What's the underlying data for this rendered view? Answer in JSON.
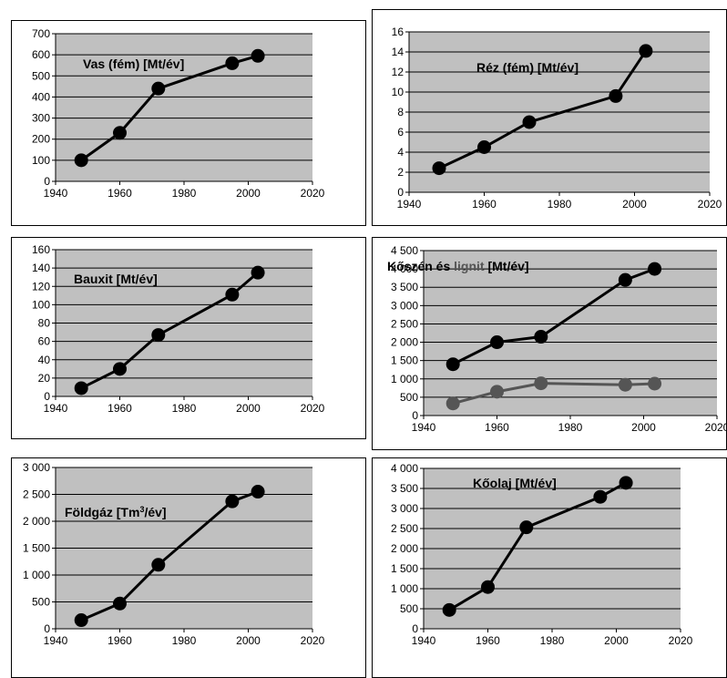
{
  "chart_data": [
    {
      "id": "vas",
      "type": "line",
      "title": "Vas (fém) [Mt/év]",
      "xlim": [
        1940,
        2020
      ],
      "ylim": [
        0,
        700
      ],
      "xticks": [
        1940,
        1960,
        1980,
        2000,
        2020
      ],
      "yticks": [
        0,
        100,
        200,
        300,
        400,
        500,
        600,
        700
      ],
      "ytick_labels": [
        "0",
        "100",
        "200",
        "300",
        "400",
        "500",
        "600",
        "700"
      ],
      "grid": true,
      "series": [
        {
          "color": "#000000",
          "x": [
            1948,
            1960,
            1972,
            1995,
            2003
          ],
          "y": [
            100,
            230,
            440,
            560,
            595
          ]
        }
      ]
    },
    {
      "id": "rez",
      "type": "line",
      "title": "Réz (fém) [Mt/év]",
      "xlim": [
        1940,
        2020
      ],
      "ylim": [
        0,
        16
      ],
      "xticks": [
        1940,
        1960,
        1980,
        2000,
        2020
      ],
      "yticks": [
        0,
        2,
        4,
        6,
        8,
        10,
        12,
        14,
        16
      ],
      "ytick_labels": [
        "0",
        "2",
        "4",
        "6",
        "8",
        "10",
        "12",
        "14",
        "16"
      ],
      "grid": true,
      "series": [
        {
          "color": "#000000",
          "x": [
            1948,
            1960,
            1972,
            1995,
            2003
          ],
          "y": [
            2.4,
            4.5,
            7.0,
            9.6,
            14.1
          ]
        }
      ]
    },
    {
      "id": "bauxit",
      "type": "line",
      "title": "Bauxit [Mt/év]",
      "xlim": [
        1940,
        2020
      ],
      "ylim": [
        0,
        160
      ],
      "xticks": [
        1940,
        1960,
        1980,
        2000,
        2020
      ],
      "yticks": [
        0,
        20,
        40,
        60,
        80,
        100,
        120,
        140,
        160
      ],
      "ytick_labels": [
        "0",
        "20",
        "40",
        "60",
        "80",
        "100",
        "120",
        "140",
        "160"
      ],
      "grid": true,
      "series": [
        {
          "color": "#000000",
          "x": [
            1948,
            1960,
            1972,
            1995,
            2003
          ],
          "y": [
            9,
            30,
            67,
            111,
            135
          ]
        }
      ]
    },
    {
      "id": "koszen",
      "type": "line",
      "title_parts": [
        {
          "text": "Kőszén és ",
          "color": "#000000"
        },
        {
          "text": "lignit",
          "color": "#555555"
        },
        {
          "text": " [Mt/év]",
          "color": "#000000"
        }
      ],
      "xlim": [
        1940,
        2020
      ],
      "ylim": [
        0,
        4500
      ],
      "xticks": [
        1940,
        1960,
        1980,
        2000,
        2020
      ],
      "yticks": [
        0,
        500,
        1000,
        1500,
        2000,
        2500,
        3000,
        3500,
        4000,
        4500
      ],
      "ytick_labels": [
        "0",
        "500",
        "1 000",
        "1 500",
        "2 000",
        "2 500",
        "3 000",
        "3 500",
        "4 000",
        "4 500"
      ],
      "grid": true,
      "series": [
        {
          "color": "#000000",
          "x": [
            1948,
            1960,
            1972,
            1995,
            2003
          ],
          "y": [
            1400,
            2000,
            2150,
            3700,
            4000
          ]
        },
        {
          "color": "#555555",
          "x": [
            1948,
            1960,
            1972,
            1995,
            2003
          ],
          "y": [
            330,
            650,
            880,
            840,
            870
          ]
        }
      ]
    },
    {
      "id": "foldgaz",
      "type": "line",
      "title_parts": [
        {
          "text": "Földgáz [Tm",
          "color": "#000000"
        },
        {
          "text": "3",
          "color": "#000000",
          "sup": true
        },
        {
          "text": "/év]",
          "color": "#000000"
        }
      ],
      "xlim": [
        1940,
        2020
      ],
      "ylim": [
        0,
        3000
      ],
      "xticks": [
        1940,
        1960,
        1980,
        2000,
        2020
      ],
      "yticks": [
        0,
        500,
        1000,
        1500,
        2000,
        2500,
        3000
      ],
      "ytick_labels": [
        "0",
        "500",
        "1 000",
        "1 500",
        "2 000",
        "2 500",
        "3 000"
      ],
      "grid": true,
      "series": [
        {
          "color": "#000000",
          "x": [
            1948,
            1960,
            1972,
            1995,
            2003
          ],
          "y": [
            160,
            470,
            1190,
            2370,
            2550
          ]
        }
      ]
    },
    {
      "id": "koolaj",
      "type": "line",
      "title": "Kőolaj [Mt/év]",
      "xlim": [
        1940,
        2020
      ],
      "ylim": [
        0,
        4000
      ],
      "xticks": [
        1940,
        1960,
        1980,
        2000,
        2020
      ],
      "yticks": [
        0,
        500,
        1000,
        1500,
        2000,
        2500,
        3000,
        3500,
        4000
      ],
      "ytick_labels": [
        "0",
        "500",
        "1 000",
        "1 500",
        "2 000",
        "2 500",
        "3 000",
        "3 500",
        "4 000"
      ],
      "grid": true,
      "series": [
        {
          "color": "#000000",
          "x": [
            1948,
            1960,
            1972,
            1995,
            2003
          ],
          "y": [
            470,
            1040,
            2530,
            3290,
            3640
          ]
        }
      ]
    }
  ]
}
